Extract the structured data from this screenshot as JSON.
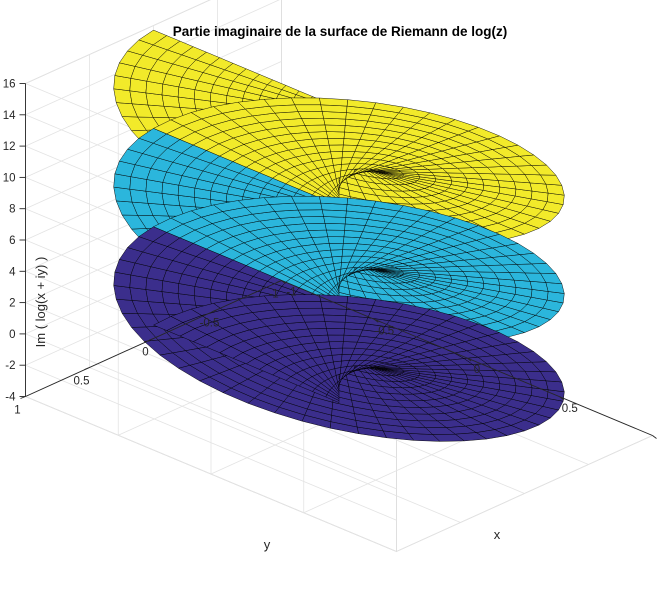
{
  "chart_data": {
    "type": "surface",
    "title": "Partie imaginaire de la surface de Riemann de log(z)",
    "xlabel": "x",
    "ylabel": "y",
    "zlabel": "Im ( log(x + iy) )",
    "xlim": [
      -1,
      1
    ],
    "ylim": [
      -1,
      1
    ],
    "zlim": [
      -4,
      16
    ],
    "xticks": [
      "-1",
      "-0.5",
      "0",
      "0.5",
      "1"
    ],
    "yticks": [
      "-1",
      "-0.5",
      "0",
      "0.5",
      "1"
    ],
    "zticks": [
      "-4",
      "-2",
      "0",
      "2",
      "4",
      "6",
      "8",
      "10",
      "12",
      "14",
      "16"
    ],
    "grid": true,
    "surface": {
      "function": "Im(log(x+iy)) = theta",
      "r_range": [
        0,
        1
      ],
      "theta_range": [
        -3.14159,
        15.70796
      ],
      "sheets": [
        {
          "theta_range": [
            -3.14159,
            3.14159
          ],
          "color": "#3b2e8c"
        },
        {
          "theta_range": [
            3.14159,
            9.42478
          ],
          "color": "#2bb6dc"
        },
        {
          "theta_range": [
            9.42478,
            15.70796
          ],
          "color": "#f2ea2a"
        }
      ],
      "edge_color": "#000000"
    }
  }
}
